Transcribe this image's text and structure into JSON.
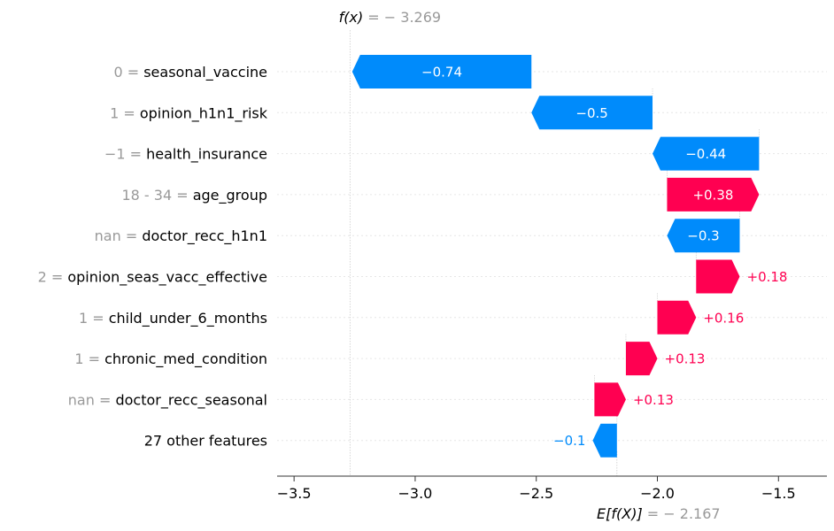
{
  "chart_data": {
    "type": "waterfall",
    "base_value": -2.167,
    "output_value": -3.269,
    "fx_label": {
      "prefix": "f(x)",
      "value": " = − 3.269"
    },
    "ex_label": {
      "prefix": "E[f(X)]",
      "value": " = − 2.167"
    },
    "xlim": [
      -3.57,
      -1.3
    ],
    "xticks": [
      -3.5,
      -3.0,
      -2.5,
      -2.0,
      -1.5
    ],
    "xtick_labels": [
      "−3.5",
      "−3.0",
      "−2.5",
      "−2.0",
      "−1.5"
    ],
    "colors": {
      "positive": "#ff0051",
      "negative": "#008bfb",
      "value_gray": "#999999"
    },
    "features": [
      {
        "value": "0",
        "name": "seasonal_vaccine",
        "start": -2.52,
        "end": -3.26,
        "label": "−0.74"
      },
      {
        "value": "1",
        "name": "opinion_h1n1_risk",
        "start": -2.02,
        "end": -2.52,
        "label": "−0.5"
      },
      {
        "value": "−1",
        "name": "health_insurance",
        "start": -1.58,
        "end": -2.02,
        "label": "−0.44"
      },
      {
        "value": "18 - 34 ",
        "name": "age_group",
        "start": -1.96,
        "end": -1.58,
        "label": "+0.38"
      },
      {
        "value": "nan",
        "name": "doctor_recc_h1n1",
        "start": -1.66,
        "end": -1.96,
        "label": "−0.3"
      },
      {
        "value": "2",
        "name": "opinion_seas_vacc_effective",
        "start": -1.84,
        "end": -1.66,
        "label": "+0.18"
      },
      {
        "value": "1",
        "name": "child_under_6_months",
        "start": -2.0,
        "end": -1.84,
        "label": "+0.16"
      },
      {
        "value": "1",
        "name": "chronic_med_condition",
        "start": -2.13,
        "end": -2.0,
        "label": "+0.13"
      },
      {
        "value": "nan",
        "name": "doctor_recc_seasonal",
        "start": -2.26,
        "end": -2.13,
        "label": "+0.13"
      },
      {
        "value": "",
        "name": "27 other features",
        "start": -2.167,
        "end": -2.267,
        "label": "−0.1"
      }
    ]
  }
}
